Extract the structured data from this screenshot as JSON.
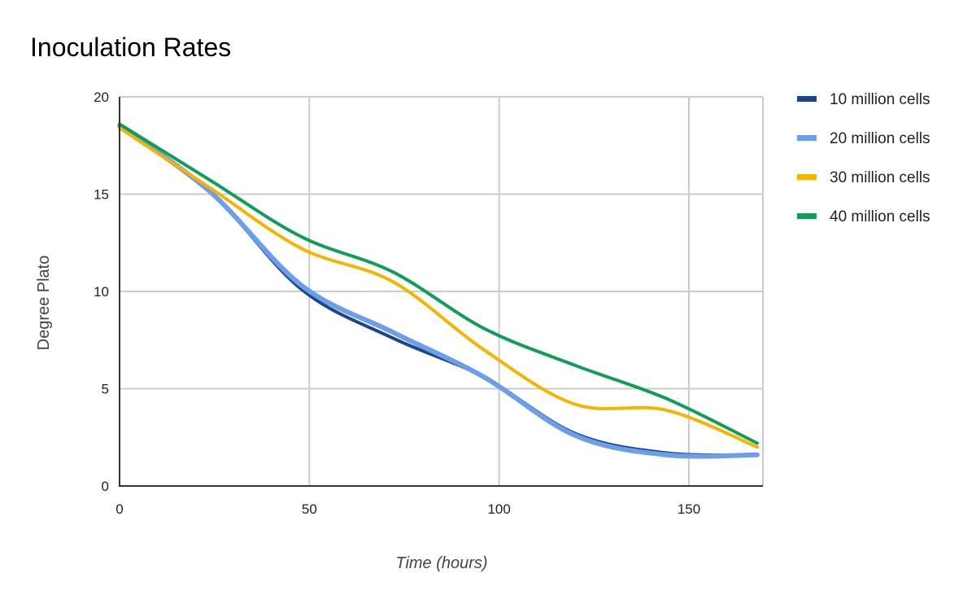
{
  "chart_data": {
    "type": "line",
    "title": "Inoculation Rates",
    "xlabel": "Time (hours)",
    "ylabel": "Degree Plato",
    "xlim": [
      0,
      169.5
    ],
    "ylim": [
      0,
      20
    ],
    "xticks": [
      0,
      50,
      100,
      150
    ],
    "yticks": [
      0,
      5,
      10,
      15,
      20
    ],
    "grid": true,
    "legend_position": "right",
    "smooth": true,
    "x": [
      0,
      24,
      48,
      72,
      96,
      120,
      144,
      168
    ],
    "series": [
      {
        "name": "10 million cells",
        "color": "#1c4587",
        "values": [
          18.5,
          15.1,
          10.1,
          7.6,
          5.6,
          2.7,
          1.7,
          1.6
        ]
      },
      {
        "name": "20 million cells",
        "color": "#6d9eeb",
        "values": [
          18.5,
          15.1,
          10.3,
          7.9,
          5.6,
          2.6,
          1.6,
          1.6
        ]
      },
      {
        "name": "30 million cells",
        "color": "#f4b400",
        "values": [
          18.4,
          15.3,
          12.2,
          10.5,
          7.0,
          4.2,
          3.9,
          2.0
        ]
      },
      {
        "name": "40 million cells",
        "color": "#0f9d58",
        "values": [
          18.6,
          15.7,
          12.8,
          11.0,
          8.1,
          6.2,
          4.5,
          2.2
        ]
      }
    ]
  }
}
